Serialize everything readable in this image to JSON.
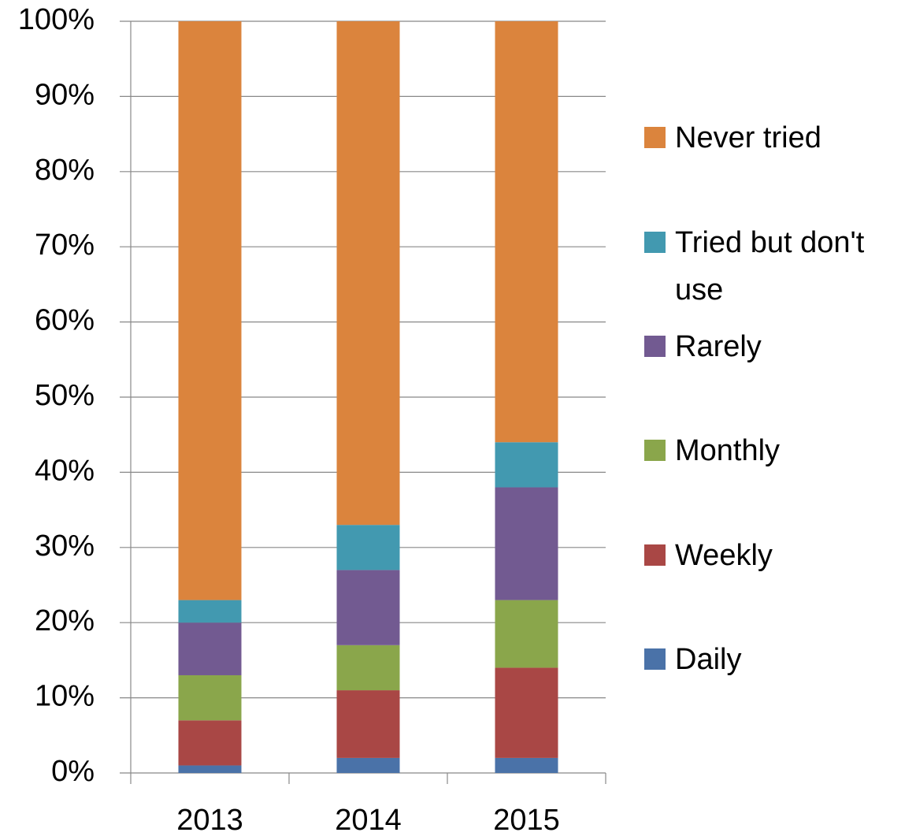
{
  "chart_data": {
    "type": "stacked_bar",
    "categories": [
      "2013",
      "2014",
      "2015"
    ],
    "series": [
      {
        "name": "Daily",
        "color": "#4a72a8",
        "values": [
          1,
          2,
          2
        ]
      },
      {
        "name": "Weekly",
        "color": "#a94745",
        "values": [
          6,
          9,
          12
        ]
      },
      {
        "name": "Monthly",
        "color": "#8aa64b",
        "values": [
          6,
          6,
          9
        ]
      },
      {
        "name": "Rarely",
        "color": "#725a91",
        "values": [
          7,
          10,
          15
        ]
      },
      {
        "name": "Tried but don't use",
        "color": "#4299b0",
        "values": [
          3,
          6,
          6
        ]
      },
      {
        "name": "Never tried",
        "color": "#db843d",
        "values": [
          77,
          67,
          56
        ]
      }
    ],
    "ylim": [
      0,
      100
    ],
    "yticks": [
      {
        "value": 0,
        "label": "0%"
      },
      {
        "value": 10,
        "label": "10%"
      },
      {
        "value": 20,
        "label": "20%"
      },
      {
        "value": 30,
        "label": "30%"
      },
      {
        "value": 40,
        "label": "40%"
      },
      {
        "value": 50,
        "label": "50%"
      },
      {
        "value": 60,
        "label": "60%"
      },
      {
        "value": 70,
        "label": "70%"
      },
      {
        "value": 80,
        "label": "80%"
      },
      {
        "value": 90,
        "label": "90%"
      },
      {
        "value": 100,
        "label": "100%"
      }
    ],
    "grid": true,
    "legend": "right"
  }
}
